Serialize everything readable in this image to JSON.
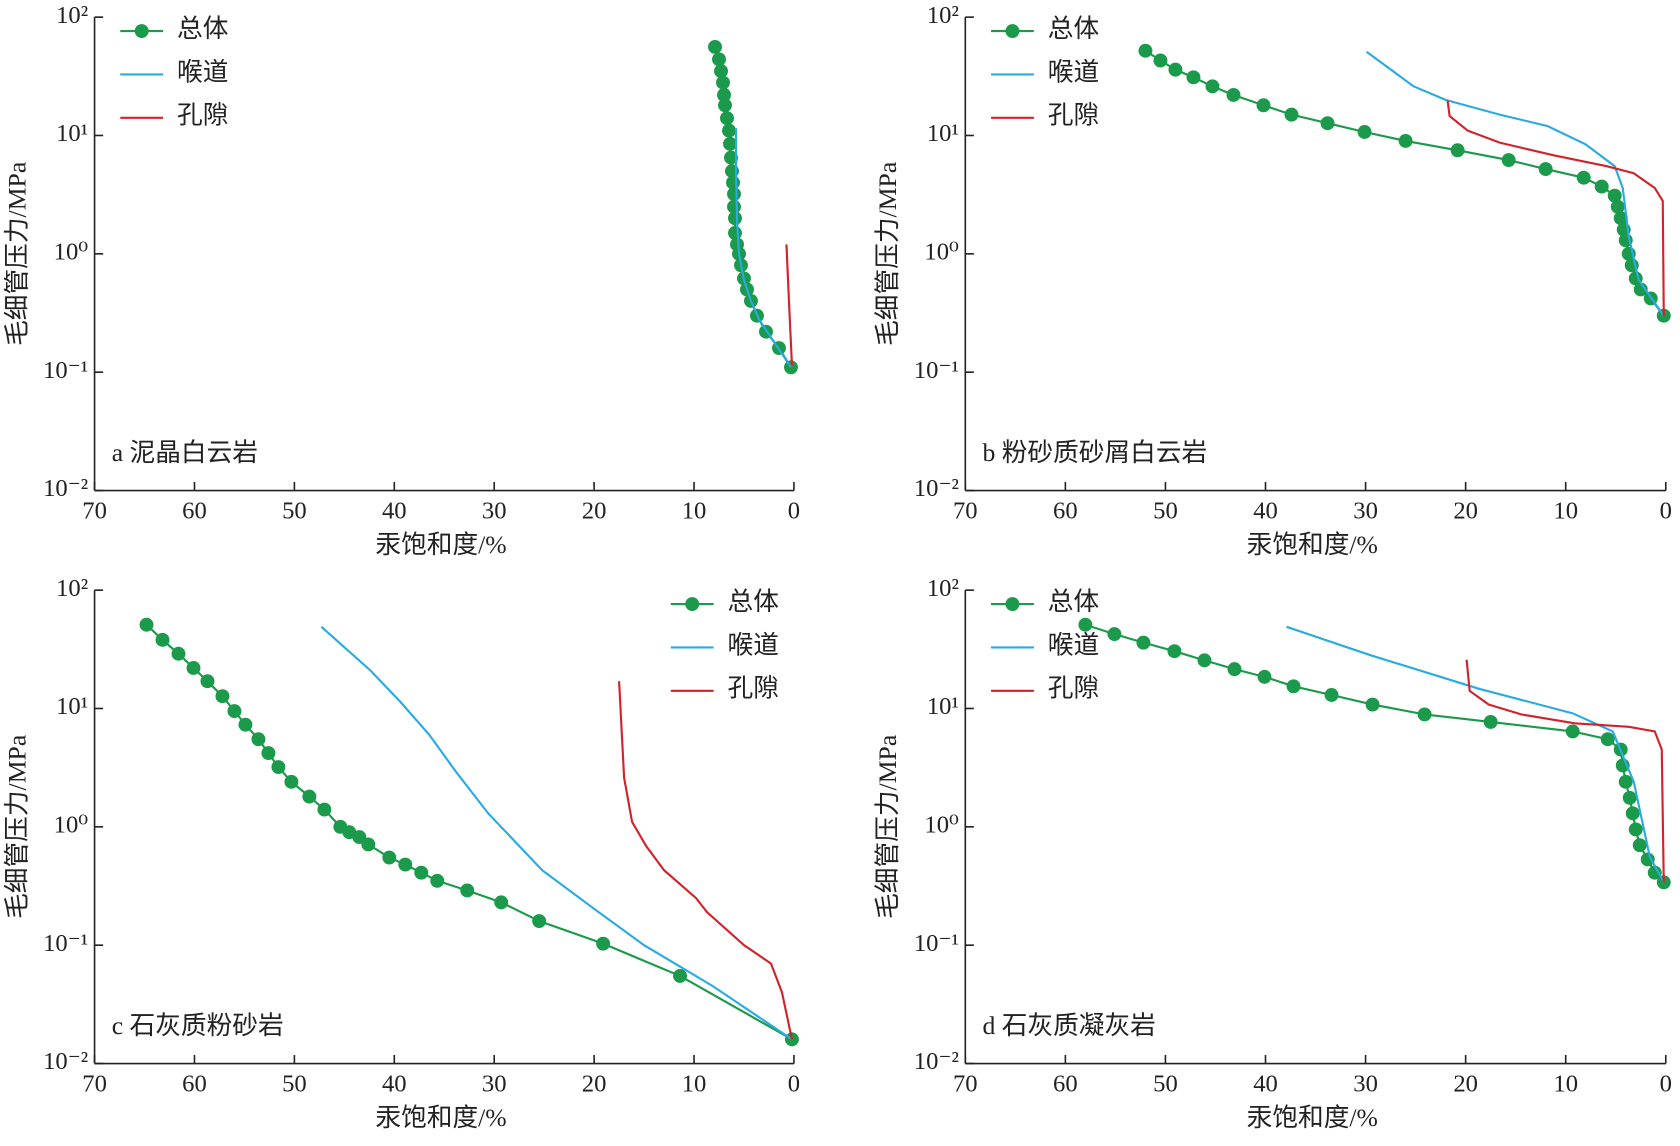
{
  "chart_data": [
    {
      "type": "line",
      "annotation": "a 泥晶白云岩",
      "xlabel": "汞饱和度/%",
      "ylabel": "毛细管压力/MPa",
      "xlim": [
        70,
        0
      ],
      "xticks": [
        70,
        60,
        50,
        40,
        30,
        20,
        10,
        0
      ],
      "ylim": [
        0.01,
        100
      ],
      "yscale": "log",
      "yticks": [
        {
          "value": 0.01,
          "label": "10⁻²"
        },
        {
          "value": 0.1,
          "label": "10⁻¹"
        },
        {
          "value": 1,
          "label": "10⁰"
        },
        {
          "value": 10,
          "label": "10¹"
        },
        {
          "value": 100,
          "label": "10²"
        }
      ],
      "legend": "upper left",
      "series": [
        {
          "name": "总体",
          "color": "#1a9a4a",
          "marker": "o",
          "x": [
            7.9,
            7.5,
            7.3,
            7.1,
            7.0,
            6.9,
            6.7,
            6.5,
            6.4,
            6.3,
            6.2,
            6.1,
            6.0,
            6.0,
            5.9,
            5.9,
            5.7,
            5.5,
            5.3,
            5.0,
            4.7,
            4.3,
            3.7,
            2.8,
            1.5,
            0.3
          ],
          "values": [
            56,
            44,
            35,
            28,
            22,
            18,
            14,
            11,
            8.5,
            6.5,
            5,
            4,
            3.2,
            2.5,
            2,
            1.5,
            1.2,
            1.0,
            0.8,
            0.62,
            0.5,
            0.4,
            0.3,
            0.22,
            0.16,
            0.11
          ]
        },
        {
          "name": "喉道",
          "color": "#29abe2",
          "x": [
            5.8,
            5.8,
            5.7,
            5.5,
            5.0,
            4.3,
            3.5,
            2,
            0.3
          ],
          "values": [
            11.5,
            5,
            2,
            1.0,
            0.6,
            0.4,
            0.28,
            0.18,
            0.11
          ]
        },
        {
          "name": "孔隙",
          "color": "#d2232a",
          "x": [
            0.75,
            0.5,
            0.2
          ],
          "values": [
            1.2,
            0.4,
            0.115
          ]
        }
      ]
    },
    {
      "type": "line",
      "annotation": "b 粉砂质砂屑白云岩",
      "xlabel": "汞饱和度/%",
      "ylabel": "毛细管压力/MPa",
      "xlim": [
        70,
        0
      ],
      "xticks": [
        70,
        60,
        50,
        40,
        30,
        20,
        10,
        0
      ],
      "ylim": [
        0.01,
        100
      ],
      "yscale": "log",
      "yticks": [
        {
          "value": 0.01,
          "label": "10⁻²"
        },
        {
          "value": 0.1,
          "label": "10⁻¹"
        },
        {
          "value": 1,
          "label": "10⁰"
        },
        {
          "value": 10,
          "label": "10¹"
        },
        {
          "value": 100,
          "label": "10²"
        }
      ],
      "legend": "upper left",
      "series": [
        {
          "name": "总体",
          "color": "#1a9a4a",
          "marker": "o",
          "x": [
            52,
            50.5,
            49,
            47.2,
            45.3,
            43.2,
            40.2,
            37.4,
            33.8,
            30.1,
            26,
            20.8,
            15.7,
            12,
            8.2,
            6.4,
            5.1,
            4.8,
            4.5,
            4.2,
            4.0,
            3.7,
            3.4,
            3.0,
            2.5,
            1.5,
            0.2
          ],
          "values": [
            52,
            43,
            36,
            31,
            26,
            22,
            18,
            15,
            12.7,
            10.7,
            9,
            7.5,
            6.2,
            5.2,
            4.4,
            3.7,
            3.1,
            2.5,
            2.0,
            1.6,
            1.3,
            1.0,
            0.8,
            0.62,
            0.5,
            0.42,
            0.3
          ]
        },
        {
          "name": "喉道",
          "color": "#29abe2",
          "x": [
            29.9,
            25.2,
            22,
            16.6,
            11.8,
            8,
            5.1,
            4.3,
            3.7,
            2.7,
            0.2
          ],
          "values": [
            51,
            26,
            20,
            15,
            12,
            8.4,
            5.5,
            3.6,
            1.4,
            0.6,
            0.3
          ]
        },
        {
          "name": "孔隙",
          "color": "#d2232a",
          "x": [
            21.8,
            21.6,
            19.8,
            16.6,
            11.2,
            5.9,
            3.2,
            1.1,
            0.3,
            0.2
          ],
          "values": [
            19.7,
            14.6,
            11,
            8.7,
            6.8,
            5.5,
            4.8,
            3.6,
            2.8,
            0.3
          ]
        }
      ]
    },
    {
      "type": "line",
      "annotation": "c 石灰质粉砂岩",
      "xlabel": "汞饱和度/%",
      "ylabel": "毛细管压力/MPa",
      "xlim": [
        70,
        0
      ],
      "xticks": [
        70,
        60,
        50,
        40,
        30,
        20,
        10,
        0
      ],
      "ylim": [
        0.01,
        100
      ],
      "yscale": "log",
      "yticks": [
        {
          "value": 0.01,
          "label": "10⁻²"
        },
        {
          "value": 0.1,
          "label": "10⁻¹"
        },
        {
          "value": 1,
          "label": "10⁰"
        },
        {
          "value": 10,
          "label": "10¹"
        },
        {
          "value": 100,
          "label": "10²"
        }
      ],
      "legend": "upper right",
      "series": [
        {
          "name": "总体",
          "color": "#1a9a4a",
          "marker": "o",
          "x": [
            64.8,
            63.2,
            61.6,
            60.1,
            58.7,
            57.2,
            56,
            54.9,
            53.6,
            52.6,
            51.6,
            50.3,
            48.5,
            47,
            45.4,
            44.5,
            43.5,
            42.6,
            40.5,
            38.9,
            37.3,
            35.7,
            32.7,
            29.3,
            25.5,
            19.1,
            11.4,
            0.2
          ],
          "values": [
            51,
            38,
            29,
            22,
            17,
            12.7,
            9.5,
            7.3,
            5.5,
            4.2,
            3.2,
            2.4,
            1.8,
            1.4,
            1.0,
            0.9,
            0.82,
            0.71,
            0.55,
            0.48,
            0.41,
            0.35,
            0.29,
            0.23,
            0.16,
            0.103,
            0.055,
            0.016
          ]
        },
        {
          "name": "喉道",
          "color": "#29abe2",
          "x": [
            47.3,
            42.4,
            39.4,
            36.5,
            33.8,
            30.6,
            25.2,
            19.9,
            15,
            8.1,
            0.2
          ],
          "values": [
            49,
            21,
            11.4,
            6,
            2.9,
            1.3,
            0.43,
            0.2,
            0.1,
            0.045,
            0.016
          ]
        },
        {
          "name": "孔隙",
          "color": "#d2232a",
          "x": [
            17.5,
            17,
            16.2,
            14.8,
            13,
            9.8,
            8.7,
            5,
            2.3,
            1.2,
            0.2
          ],
          "values": [
            17,
            2.6,
            1.1,
            0.69,
            0.43,
            0.25,
            0.19,
            0.1,
            0.07,
            0.04,
            0.016
          ]
        }
      ]
    },
    {
      "type": "line",
      "annotation": "d 石灰质凝灰岩",
      "xlabel": "汞饱和度/%",
      "ylabel": "毛细管压力/MPa",
      "xlim": [
        70,
        0
      ],
      "xticks": [
        70,
        60,
        50,
        40,
        30,
        20,
        10,
        0
      ],
      "ylim": [
        0.01,
        100
      ],
      "yscale": "log",
      "yticks": [
        {
          "value": 0.01,
          "label": "10⁻²"
        },
        {
          "value": 0.1,
          "label": "10⁻¹"
        },
        {
          "value": 1,
          "label": "10⁰"
        },
        {
          "value": 10,
          "label": "10¹"
        },
        {
          "value": 100,
          "label": "10²"
        }
      ],
      "legend": "upper left",
      "series": [
        {
          "name": "总体",
          "color": "#1a9a4a",
          "marker": "o",
          "x": [
            58,
            55.1,
            52.2,
            49.1,
            46.1,
            43.1,
            40.1,
            37.2,
            33.4,
            29.3,
            24.1,
            17.5,
            9.3,
            5.8,
            4.5,
            4.3,
            4.0,
            3.6,
            3.3,
            3.0,
            2.6,
            1.8,
            1.1,
            0.2
          ],
          "values": [
            51,
            42.5,
            36,
            30.5,
            25.5,
            21.5,
            18.5,
            15.4,
            13,
            10.8,
            8.9,
            7.7,
            6.4,
            5.5,
            4.5,
            3.3,
            2.4,
            1.76,
            1.3,
            0.95,
            0.7,
            0.53,
            0.41,
            0.34
          ]
        },
        {
          "name": "喉道",
          "color": "#29abe2",
          "x": [
            37.9,
            29.4,
            18.7,
            9.3,
            5.3,
            3.2,
            1.6,
            0.2
          ],
          "values": [
            49,
            28,
            14.7,
            9.1,
            6.4,
            2.4,
            0.56,
            0.34
          ]
        },
        {
          "name": "孔隙",
          "color": "#d2232a",
          "x": [
            19.9,
            19.6,
            17.7,
            14.4,
            9.1,
            3.7,
            1.1,
            0.4,
            0.2
          ],
          "values": [
            25.8,
            14.1,
            10.8,
            8.9,
            7.5,
            7,
            6.4,
            4.5,
            0.34
          ]
        }
      ]
    }
  ]
}
